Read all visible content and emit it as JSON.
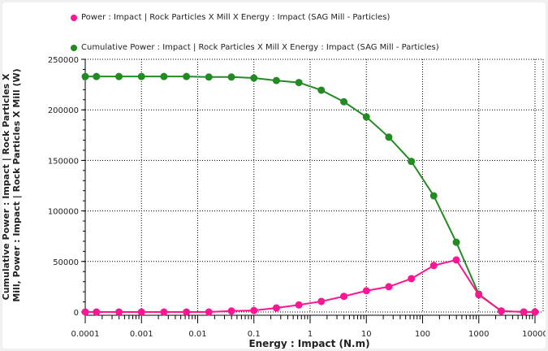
{
  "chart_data": {
    "type": "line",
    "xscale": "log",
    "xlabel": "Energy : Impact (N.m)",
    "ylabel": "Cumulative Power : Impact | Rock Particles X Mill, Power : Impact | Rock Particles X Mill (W)",
    "xlim": [
      0.0001,
      10000
    ],
    "ylim": [
      0,
      250000
    ],
    "grid": true,
    "legend_position": "top",
    "xticks": [
      "0.0001",
      "0.001",
      "0.01",
      "0.1",
      "1",
      "10",
      "100",
      "1000",
      "10000"
    ],
    "yticks": [
      "0",
      "50000",
      "100000",
      "150000",
      "200000",
      "250000"
    ],
    "x": [
      0.0001,
      0.000158,
      0.000398,
      0.001,
      0.00251,
      0.00631,
      0.0158,
      0.0398,
      0.1,
      0.251,
      0.631,
      1.58,
      3.98,
      10,
      25.1,
      63.1,
      158,
      398,
      1000,
      2512,
      6310,
      10000
    ],
    "series": [
      {
        "name": "Power : Impact | Rock Particles X Mill X Energy : Impact (SAG Mill - Particles)",
        "color": "#ff1493",
        "values": [
          0,
          0,
          0,
          0,
          0,
          0,
          0,
          1000,
          1500,
          4000,
          7000,
          10500,
          15500,
          21000,
          25000,
          33000,
          46000,
          51500,
          17000,
          1000,
          0,
          0
        ]
      },
      {
        "name": "Cumulative Power : Impact | Rock Particles X Mill X Energy : Impact (SAG Mill - Particles)",
        "color": "#228b22",
        "values": [
          233000,
          233000,
          233000,
          233000,
          233000,
          233000,
          232500,
          232500,
          231500,
          229000,
          227000,
          219500,
          208000,
          193000,
          173000,
          149000,
          115000,
          69000,
          17700,
          1000,
          0,
          0
        ]
      }
    ]
  }
}
